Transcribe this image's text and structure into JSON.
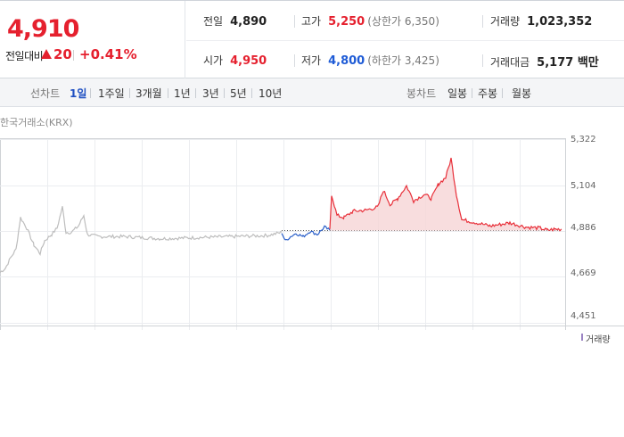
{
  "quote": {
    "price": "4,910",
    "diff_label": "전일대비",
    "diff_amount": "20",
    "diff_rate": "+0.41%",
    "prev_close": {
      "label": "전일",
      "value": "4,890"
    },
    "open": {
      "label": "시가",
      "value": "4,950"
    },
    "high": {
      "label": "고가",
      "value": "5,250",
      "sub": "(상한가 6,350)"
    },
    "low": {
      "label": "저가",
      "value": "4,800",
      "sub": "(하한가 3,425)"
    },
    "volume": {
      "label": "거래량",
      "value": "1,023,352"
    },
    "amount": {
      "label": "거래대금",
      "value": "5,177 백만"
    }
  },
  "toolbar": {
    "line_label": "선차트",
    "periods": [
      "1일",
      "1주일",
      "3개월",
      "1년",
      "3년",
      "5년",
      "10년"
    ],
    "active_period": "1일",
    "candle_label": "봉차트",
    "candles": [
      "일봉",
      "주봉",
      "월봉"
    ]
  },
  "chart_data": {
    "type": "line",
    "source_label": "한국거래소(KRX)",
    "yticks": [
      "5,322",
      "5,104",
      "4,886",
      "4,669",
      "4,451"
    ],
    "ylim": [
      4451,
      5322
    ],
    "reference_line": 4890,
    "colors": {
      "pre": "#bdbdbd",
      "down": "#2a5fc9",
      "up": "#e8303a",
      "up_fill": "#f6d4d6"
    },
    "volume_legend": "거래량"
  }
}
